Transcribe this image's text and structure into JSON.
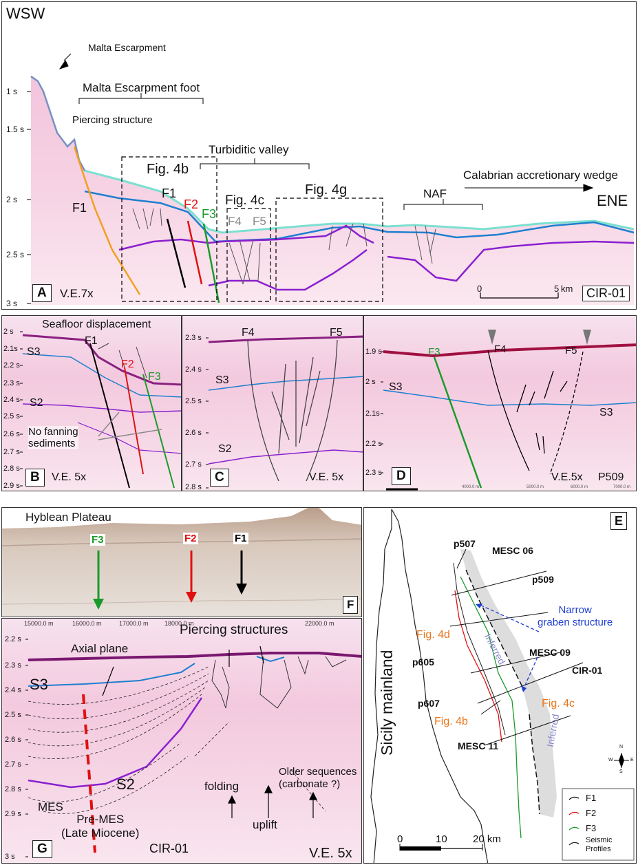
{
  "panelA": {
    "tag": "A",
    "wsw": "WSW",
    "ene": "ENE",
    "malta_escarpment": "Malta Escarpment",
    "malta_escarpment_foot": "Malta Escarpment foot",
    "piercing_structure": "Piercing structure",
    "turbiditic_valley": "Turbiditic valley",
    "fig4b": "Fig. 4b",
    "fig4c": "Fig. 4c",
    "fig4g": "Fig. 4g",
    "nafs": "NAF",
    "calabrian": "Calabrian accretionary wedge",
    "f1a": "F1",
    "f1b": "F1",
    "f2": "F2",
    "f3": "F3",
    "f4": "F4",
    "f5": "F5",
    "ve": "V.E.7x",
    "profile": "CIR-01",
    "scale_0": "0",
    "scale_5": "5",
    "scale_km": "km",
    "yticks": [
      "1 s",
      "1.5 s",
      "2 s",
      "2.5 s",
      "3 s"
    ]
  },
  "panelB": {
    "tag": "B",
    "title": "Seafloor displacement",
    "s3": "S3",
    "s2": "S2",
    "f1": "F1",
    "f2": "F2",
    "f3": "F3",
    "no_fanning": "No fanning\nsediments",
    "ve": "V.E. 5x",
    "yticks": [
      "2 s",
      "2.1s",
      "2.2 s",
      "2.3 s",
      "2.4 s",
      "2.5 s",
      "2.6 s",
      "2.7 s",
      "2.8 s",
      "2.9 s"
    ]
  },
  "panelC": {
    "tag": "C",
    "f4": "F4",
    "f5": "F5",
    "s3": "S3",
    "s2": "S2",
    "ve": "V.E. 5x",
    "yticks": [
      "2.3 s",
      "2.4 s",
      "2.5 s",
      "2.6 s",
      "2.7 s",
      "2.8 s"
    ]
  },
  "panelD": {
    "tag": "D",
    "f3": "F3",
    "f4": "F4",
    "f5": "F5",
    "s3a": "S3",
    "s3b": "S3",
    "ve": "V.E.5x",
    "profile": "P509",
    "yticks": [
      "1.9 s",
      "2 s",
      "2.1s",
      "2.2 s",
      "2.3 s"
    ],
    "xticks": [
      "4000.0 m",
      "5000.0 m",
      "6000.0 m",
      "7000.0 m"
    ]
  },
  "panelE": {
    "tag": "E",
    "sicily": "Sicily mainland",
    "p507": "p507",
    "mesc06": "MESC 06",
    "p509": "p509",
    "narrow": "Narrow\ngraben structure",
    "fig4d": "Fig. 4d",
    "mesc09": "MESC 09",
    "cir01": "CIR-01",
    "p605": "p605",
    "p607": "p607",
    "fig4c": "Fig. 4c",
    "fig4b": "Fig. 4b",
    "mesc11": "MESC 11",
    "inferred1": "Inferred",
    "inferred2": "Inferred",
    "legend": [
      "F1",
      "F2",
      "F3",
      "Seismic\nProfiles"
    ],
    "scale_0": "0",
    "scale_10": "10",
    "scale_20": "20 km",
    "compass": [
      "N",
      "S",
      "W",
      "E"
    ]
  },
  "panelF": {
    "tag": "F",
    "title": "Hyblean Plateau",
    "f3": "F3",
    "f2": "F2",
    "f1": "F1"
  },
  "panelG": {
    "tag": "G",
    "piercing": "Piercing structures",
    "axial": "Axial plane",
    "s3": "S3",
    "s2": "S2",
    "mes": "MES",
    "premes": "Pre-MES\n(Late Miocene)",
    "folding": "folding",
    "uplift": "uplift",
    "older": "Older sequences\n(carbonate ?)",
    "profile": "CIR-01",
    "ve": "V.E. 5x",
    "yticks": [
      "2.2 s",
      "2.3 s",
      "2.4 s",
      "2.5 s",
      "2.6 s",
      "2.7 s",
      "2.8 s",
      "2.9 s",
      "3 s"
    ],
    "xticks": [
      "15000.0 m",
      "16000.0 m",
      "17000.0 m",
      "18000.0 m",
      "22000.0 m"
    ]
  },
  "colors": {
    "f1": "#000000",
    "f2": "#e01010",
    "f3": "#1a9a2a",
    "s3": "#1e7fd0",
    "s2": "#8a1fd0",
    "orange": "#f0a020",
    "fig4": "#e8751a"
  }
}
